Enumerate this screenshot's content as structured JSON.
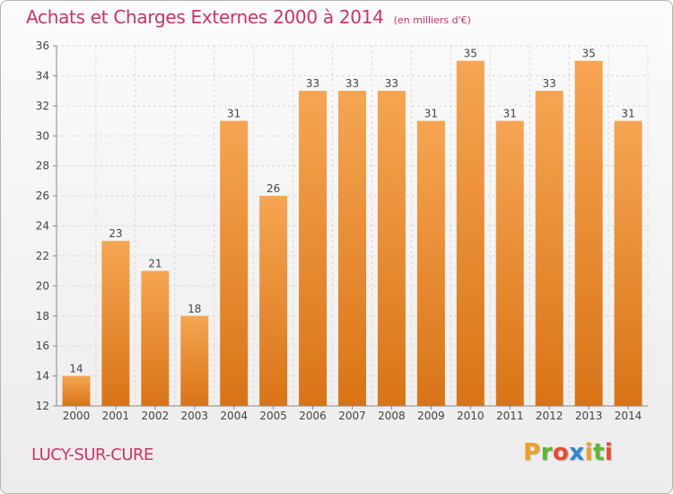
{
  "header": {
    "title": "Achats et Charges Externes 2000 à 2014",
    "unit": "(en milliers d'€)"
  },
  "footer": {
    "city": "LUCY-SUR-CURE",
    "logo_letters": [
      "P",
      "r",
      "o",
      "x",
      "i",
      "t",
      "i"
    ],
    "logo_colors": [
      "#f0a020",
      "#5bb82e",
      "#e84b2e",
      "#2a87d4",
      "#f0a020",
      "#5bb82e",
      "#e84b2e"
    ]
  },
  "colors": {
    "bar_light": "#f6a552",
    "bar_dark": "#d97416",
    "grid": "#d9d9d9",
    "axis": "#888888"
  },
  "chart_data": {
    "type": "bar",
    "title": "Achats et Charges Externes 2000 à 2014",
    "subtitle": "(en milliers d'€)",
    "categories": [
      "2000",
      "2001",
      "2002",
      "2003",
      "2004",
      "2005",
      "2006",
      "2007",
      "2008",
      "2009",
      "2010",
      "2011",
      "2012",
      "2013",
      "2014"
    ],
    "values": [
      14,
      23,
      21,
      18,
      31,
      26,
      33,
      33,
      33,
      31,
      35,
      31,
      33,
      35,
      31
    ],
    "ylim": [
      12,
      36
    ],
    "yticks": [
      12,
      14,
      16,
      18,
      20,
      22,
      24,
      26,
      28,
      30,
      32,
      34,
      36
    ],
    "grid": true,
    "legend": "none",
    "xlabel": "",
    "ylabel": ""
  }
}
